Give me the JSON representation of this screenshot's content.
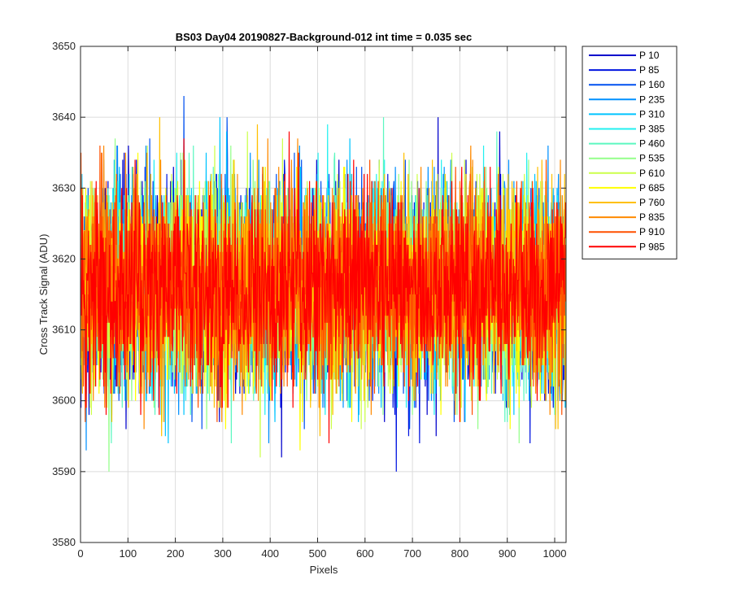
{
  "chart_data": {
    "type": "line",
    "title": "BS03 Day04 20190827-Background-012 int time = 0.035 sec",
    "xlabel": "Pixels",
    "ylabel": "Cross Track Signal (ADU)",
    "xlim": [
      0,
      1024
    ],
    "ylim": [
      3580,
      3650
    ],
    "xticks": [
      0,
      100,
      200,
      300,
      400,
      500,
      600,
      700,
      800,
      900,
      1000
    ],
    "yticks": [
      3580,
      3590,
      3600,
      3610,
      3620,
      3630,
      3640,
      3650
    ],
    "grid": true,
    "legend_position": "outside-top-right",
    "noise_model": {
      "mean": 3616,
      "sd": 7,
      "points_per_series": 1024
    },
    "series": [
      {
        "name": "P 10",
        "color": "#0000cc"
      },
      {
        "name": "P 85",
        "color": "#0014e0"
      },
      {
        "name": "P 160",
        "color": "#0050f0"
      },
      {
        "name": "P 235",
        "color": "#0090ff"
      },
      {
        "name": "P 310",
        "color": "#00c4ff"
      },
      {
        "name": "P 385",
        "color": "#22f0f0"
      },
      {
        "name": "P 460",
        "color": "#5cf7c0"
      },
      {
        "name": "P 535",
        "color": "#94ff8a"
      },
      {
        "name": "P 610",
        "color": "#ccff4a"
      },
      {
        "name": "P 685",
        "color": "#ffff00"
      },
      {
        "name": "P 760",
        "color": "#ffc000"
      },
      {
        "name": "P 835",
        "color": "#ff8a00"
      },
      {
        "name": "P 910",
        "color": "#ff5000"
      },
      {
        "name": "P 985",
        "color": "#ff0000"
      }
    ]
  }
}
